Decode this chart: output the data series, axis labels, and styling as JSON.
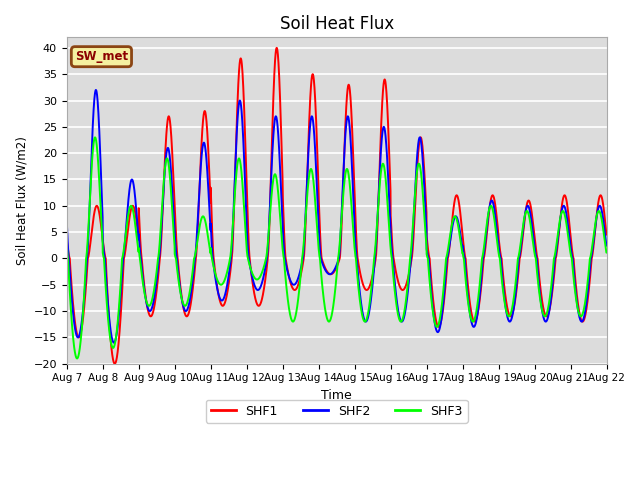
{
  "title": "Soil Heat Flux",
  "ylabel": "Soil Heat Flux (W/m2)",
  "xlabel": "Time",
  "ylim": [
    -20,
    42
  ],
  "background_color": "#dcdcdc",
  "grid_color": "white",
  "legend_label": "SW_met",
  "legend_bg": "#f5f0a0",
  "legend_border": "#8B4513",
  "series_colors": [
    "red",
    "blue",
    "lime"
  ],
  "series_labels": [
    "SHF1",
    "SHF2",
    "SHF3"
  ],
  "xtick_labels": [
    "Aug 7",
    "Aug 8",
    "Aug 9",
    "Aug 10",
    "Aug 11",
    "Aug 12",
    "Aug 13",
    "Aug 14",
    "Aug 15",
    "Aug 16",
    "Aug 17",
    "Aug 18",
    "Aug 19",
    "Aug 20",
    "Aug 21",
    "Aug 22"
  ],
  "linewidth": 1.4
}
